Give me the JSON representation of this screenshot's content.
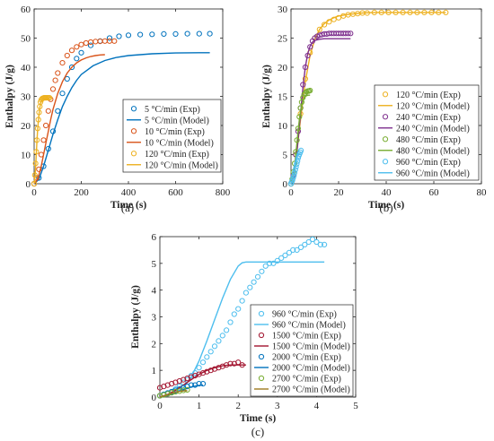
{
  "chart_data": [
    {
      "panel_label": "(a)",
      "type": "line",
      "xlabel": "Time (s)",
      "ylabel": "Enthalpy (J/g)",
      "xlim": [
        0,
        800
      ],
      "ylim": [
        0,
        60
      ],
      "xticks": [
        0,
        200,
        400,
        600,
        800
      ],
      "yticks": [
        0,
        10,
        20,
        30,
        40,
        50,
        60
      ],
      "grid": false,
      "legend_position": "bottom-right",
      "series": [
        {
          "name": "5 °C/min (Exp)",
          "kind": "exp",
          "color": "#0072BD",
          "x": [
            0,
            20,
            40,
            60,
            80,
            100,
            120,
            140,
            160,
            180,
            200,
            240,
            280,
            320,
            360,
            400,
            450,
            500,
            550,
            600,
            650,
            700,
            745
          ],
          "y": [
            0,
            2,
            6,
            12,
            18,
            25,
            31,
            36,
            40,
            43,
            45,
            47.5,
            49,
            50,
            50.6,
            51,
            51.2,
            51.3,
            51.4,
            51.4,
            51.5,
            51.5,
            51.5
          ]
        },
        {
          "name": "5 °C/min (Model)",
          "kind": "model",
          "color": "#0072BD",
          "x": [
            0,
            20,
            40,
            60,
            80,
            100,
            120,
            140,
            160,
            180,
            200,
            250,
            300,
            350,
            400,
            500,
            600,
            700,
            745
          ],
          "y": [
            0,
            1.5,
            6,
            11.5,
            17,
            22,
            26.5,
            30,
            33,
            35.5,
            37.5,
            40.5,
            42.3,
            43.4,
            44,
            44.6,
            44.9,
            45,
            45
          ]
        },
        {
          "name": "10 °C/min (Exp)",
          "kind": "exp",
          "color": "#D95319",
          "x": [
            0,
            10,
            20,
            30,
            40,
            50,
            60,
            70,
            80,
            90,
            100,
            120,
            140,
            160,
            180,
            200,
            220,
            240,
            260,
            280,
            300,
            320,
            340
          ],
          "y": [
            0,
            2,
            5,
            10,
            15,
            20,
            25,
            29,
            32.5,
            35.5,
            38,
            41.5,
            44,
            45.8,
            47,
            47.8,
            48.3,
            48.6,
            48.8,
            48.9,
            49,
            49,
            49
          ]
        },
        {
          "name": "10 °C/min (Model)",
          "kind": "model",
          "color": "#D95319",
          "x": [
            0,
            10,
            20,
            30,
            40,
            50,
            60,
            70,
            80,
            100,
            120,
            140,
            160,
            180,
            200,
            220,
            240,
            260,
            280,
            300
          ],
          "y": [
            0,
            1,
            3,
            6,
            10,
            14,
            18,
            22,
            25.5,
            31,
            35,
            38,
            40,
            41.5,
            42.5,
            43.2,
            43.7,
            44,
            44.2,
            44.3
          ]
        },
        {
          "name": "120 °C/min (Exp)",
          "kind": "exp",
          "color": "#EDB120",
          "x": [
            0,
            3,
            6,
            9,
            12,
            15,
            18,
            21,
            24,
            27,
            30,
            34,
            38,
            42,
            46,
            50,
            55,
            60,
            65
          ],
          "y": [
            0,
            3,
            7,
            11,
            15,
            19,
            22,
            24.5,
            26.5,
            28,
            28.8,
            29.2,
            29.4,
            29.5,
            29.5,
            29.5,
            29.5,
            29.5,
            29.5
          ]
        },
        {
          "name": "120 °C/min (Model)",
          "kind": "model",
          "color": "#EDB120",
          "x": [
            0,
            3,
            6,
            9,
            12,
            15,
            18,
            21,
            24,
            27,
            30,
            35,
            40,
            45,
            50,
            55,
            60,
            65
          ],
          "y": [
            0,
            2,
            5.5,
            10,
            14.5,
            18.5,
            21.5,
            24,
            26,
            27.5,
            28.3,
            29,
            29.3,
            29.4,
            29.4,
            29.4,
            29.4,
            29.4
          ]
        }
      ]
    },
    {
      "panel_label": "(b)",
      "type": "line",
      "xlabel": "Time (s)",
      "ylabel": "Enthalpy (J/g)",
      "xlim": [
        0,
        80
      ],
      "ylim": [
        0,
        30
      ],
      "xticks": [
        0,
        20,
        40,
        60,
        80
      ],
      "yticks": [
        0,
        5,
        10,
        15,
        20,
        25,
        30
      ],
      "grid": false,
      "legend_position": "bottom-right",
      "series": [
        {
          "name": "120 °C/min (Exp)",
          "kind": "exp",
          "color": "#EDB120",
          "x": [
            0,
            2,
            4,
            6,
            8,
            10,
            12,
            14,
            16,
            18,
            20,
            22,
            24,
            26,
            28,
            30,
            32,
            35,
            38,
            41,
            44,
            47,
            50,
            53,
            56,
            59,
            62,
            65
          ],
          "y": [
            0,
            5,
            12,
            18,
            22.5,
            25,
            26.5,
            27.3,
            27.8,
            28.2,
            28.5,
            28.8,
            29,
            29.1,
            29.2,
            29.3,
            29.3,
            29.4,
            29.4,
            29.4,
            29.4,
            29.4,
            29.4,
            29.4,
            29.4,
            29.4,
            29.4,
            29.4
          ]
        },
        {
          "name": "120 °C/min (Model)",
          "kind": "model",
          "color": "#EDB120",
          "x": [
            0,
            2,
            4,
            6,
            8,
            10,
            12,
            14,
            16,
            18,
            20,
            25,
            30,
            35,
            40,
            50,
            60,
            65
          ],
          "y": [
            0,
            4,
            11,
            17.5,
            22,
            24.8,
            26.5,
            27.5,
            28.1,
            28.5,
            28.8,
            29.1,
            29.3,
            29.4,
            29.4,
            29.4,
            29.4,
            29.4
          ]
        },
        {
          "name": "240 °C/min (Exp)",
          "kind": "exp",
          "color": "#7E2F8E",
          "x": [
            0,
            1,
            2,
            3,
            4,
            5,
            6,
            7,
            8,
            9,
            10,
            11,
            12,
            13,
            14,
            15,
            16,
            17,
            18,
            19,
            20,
            21,
            22,
            23,
            24,
            25
          ],
          "y": [
            0,
            1.5,
            5,
            9,
            13,
            17,
            20,
            22,
            23.5,
            24.5,
            25,
            25.3,
            25.5,
            25.6,
            25.7,
            25.7,
            25.8,
            25.8,
            25.8,
            25.8,
            25.8,
            25.8,
            25.8,
            25.8,
            25.8,
            25.8
          ]
        },
        {
          "name": "240 °C/min (Model)",
          "kind": "model",
          "color": "#7E2F8E",
          "x": [
            0,
            1,
            2,
            3,
            4,
            5,
            6,
            7,
            8,
            9,
            10,
            12,
            14,
            16,
            18,
            20,
            22,
            24,
            25
          ],
          "y": [
            0,
            1,
            3.5,
            7.5,
            12,
            16.5,
            20,
            22.3,
            23.6,
            24.3,
            24.6,
            24.8,
            24.9,
            24.9,
            24.9,
            24.9,
            24.9,
            24.9,
            24.9
          ]
        },
        {
          "name": "480 °C/min (Exp)",
          "kind": "exp",
          "color": "#77AC30",
          "x": [
            0,
            0.5,
            1,
            1.5,
            2,
            2.5,
            3,
            3.5,
            4,
            4.5,
            5,
            5.5,
            6,
            6.5,
            7,
            7.5,
            8
          ],
          "y": [
            0,
            0.8,
            2,
            3.5,
            5.5,
            7.5,
            9.5,
            11.5,
            13,
            14,
            14.8,
            15.3,
            15.6,
            15.8,
            15.9,
            15.9,
            16
          ]
        },
        {
          "name": "480 °C/min (Model)",
          "kind": "model",
          "color": "#77AC30",
          "x": [
            0,
            0.5,
            1,
            1.5,
            2,
            2.5,
            3,
            3.5,
            4,
            4.5,
            5,
            5.5,
            6,
            6.5,
            7,
            7.5,
            8
          ],
          "y": [
            0,
            0.5,
            1.5,
            3,
            5,
            7,
            9,
            11,
            12.5,
            13.5,
            14.2,
            14.7,
            15,
            15.1,
            15.2,
            15.2,
            15.2
          ]
        },
        {
          "name": "960 °C/min (Exp)",
          "kind": "exp",
          "color": "#4DBEEE",
          "x": [
            0,
            0.3,
            0.6,
            0.9,
            1.2,
            1.5,
            1.8,
            2.1,
            2.4,
            2.7,
            3,
            3.3,
            3.6,
            3.9,
            4.2
          ],
          "y": [
            0,
            0.3,
            0.6,
            1,
            1.4,
            1.9,
            2.4,
            2.9,
            3.4,
            3.9,
            4.4,
            4.8,
            5.1,
            5.4,
            5.7
          ]
        },
        {
          "name": "960 °C/min (Model)",
          "kind": "model",
          "color": "#4DBEEE",
          "x": [
            0,
            0.3,
            0.6,
            0.9,
            1.2,
            1.5,
            1.8,
            2.1,
            2.4,
            2.7,
            3,
            3.5,
            4,
            4.2
          ],
          "y": [
            0,
            0.2,
            0.6,
            1.1,
            1.7,
            2.4,
            3.1,
            3.8,
            4.4,
            4.8,
            5,
            5.05,
            5.05,
            5.05
          ]
        }
      ]
    },
    {
      "panel_label": "(c)",
      "type": "line",
      "xlabel": "Time (s)",
      "ylabel": "Enthalpy (J/g)",
      "xlim": [
        0,
        5
      ],
      "ylim": [
        0,
        6
      ],
      "xticks": [
        0,
        1,
        2,
        3,
        4,
        5
      ],
      "yticks": [
        0,
        1,
        2,
        3,
        4,
        5,
        6
      ],
      "grid": false,
      "legend_position": "bottom-right",
      "series": [
        {
          "name": "960 °C/min (Exp)",
          "kind": "exp",
          "color": "#4DBEEE",
          "x": [
            0,
            0.1,
            0.2,
            0.3,
            0.4,
            0.5,
            0.6,
            0.7,
            0.8,
            0.9,
            1,
            1.1,
            1.2,
            1.3,
            1.4,
            1.5,
            1.6,
            1.7,
            1.8,
            1.9,
            2,
            2.1,
            2.2,
            2.3,
            2.4,
            2.5,
            2.6,
            2.7,
            2.8,
            2.9,
            3,
            3.1,
            3.2,
            3.3,
            3.4,
            3.5,
            3.6,
            3.7,
            3.8,
            3.9,
            4,
            4.1,
            4.2
          ],
          "y": [
            0.05,
            0.1,
            0.15,
            0.2,
            0.3,
            0.4,
            0.55,
            0.65,
            0.8,
            0.9,
            1.1,
            1.3,
            1.5,
            1.7,
            1.9,
            2.1,
            2.3,
            2.5,
            2.8,
            3.1,
            3.3,
            3.6,
            3.9,
            4.1,
            4.3,
            4.5,
            4.7,
            4.9,
            5.0,
            5.0,
            5.1,
            5.2,
            5.3,
            5.4,
            5.5,
            5.5,
            5.6,
            5.7,
            5.8,
            5.9,
            5.8,
            5.7,
            5.7
          ]
        },
        {
          "name": "960 °C/min (Model)",
          "kind": "model",
          "color": "#4DBEEE",
          "x": [
            0,
            0.2,
            0.4,
            0.6,
            0.8,
            1,
            1.2,
            1.4,
            1.6,
            1.8,
            2,
            2.1,
            2.2,
            2.4,
            3,
            3.5,
            4,
            4.2
          ],
          "y": [
            0,
            0.05,
            0.15,
            0.35,
            0.75,
            1.35,
            2.1,
            2.9,
            3.7,
            4.4,
            4.9,
            5.02,
            5.05,
            5.05,
            5.05,
            5.05,
            5.05,
            5.05
          ]
        },
        {
          "name": "1500 °C/min (Exp)",
          "kind": "exp",
          "color": "#A2142F",
          "x": [
            0,
            0.1,
            0.2,
            0.3,
            0.4,
            0.5,
            0.6,
            0.7,
            0.8,
            0.9,
            1,
            1.1,
            1.2,
            1.3,
            1.4,
            1.5,
            1.6,
            1.7,
            1.8,
            1.9,
            2,
            2.1
          ],
          "y": [
            0.35,
            0.4,
            0.45,
            0.5,
            0.55,
            0.6,
            0.65,
            0.7,
            0.75,
            0.8,
            0.85,
            0.9,
            0.95,
            1.0,
            1.05,
            1.1,
            1.15,
            1.2,
            1.25,
            1.25,
            1.3,
            1.2
          ]
        },
        {
          "name": "1500 °C/min (Model)",
          "kind": "model",
          "color": "#A2142F",
          "x": [
            0,
            0.2,
            0.4,
            0.6,
            0.8,
            1,
            1.2,
            1.4,
            1.6,
            1.8,
            2,
            2.2
          ],
          "y": [
            0,
            0.1,
            0.25,
            0.45,
            0.65,
            0.85,
            1.0,
            1.1,
            1.17,
            1.2,
            1.2,
            1.2
          ]
        },
        {
          "name": "2000 °C/min (Exp)",
          "kind": "exp",
          "color": "#0072BD",
          "x": [
            0,
            0.1,
            0.2,
            0.3,
            0.4,
            0.5,
            0.6,
            0.7,
            0.8,
            0.9,
            1,
            1.1
          ],
          "y": [
            0.05,
            0.1,
            0.15,
            0.2,
            0.25,
            0.3,
            0.35,
            0.4,
            0.45,
            0.45,
            0.5,
            0.5
          ]
        },
        {
          "name": "2000 °C/min (Model)",
          "kind": "model",
          "color": "#0072BD",
          "x": [
            0,
            0.2,
            0.4,
            0.6,
            0.8,
            1,
            1.1
          ],
          "y": [
            0,
            0.06,
            0.16,
            0.28,
            0.38,
            0.44,
            0.45
          ]
        },
        {
          "name": "2700 °C/min (Exp)",
          "kind": "exp",
          "color": "#77AC30",
          "x": [
            0,
            0.1,
            0.2,
            0.3,
            0.4,
            0.5,
            0.6,
            0.7
          ],
          "y": [
            0.05,
            0.08,
            0.12,
            0.16,
            0.2,
            0.22,
            0.25,
            0.27
          ]
        },
        {
          "name": "2700 °C/min (Model)",
          "kind": "model",
          "color": "#9E7B1F",
          "x": [
            0,
            0.1,
            0.2,
            0.3,
            0.4,
            0.5,
            0.6,
            0.7
          ],
          "y": [
            0,
            0.04,
            0.09,
            0.14,
            0.18,
            0.21,
            0.23,
            0.24
          ]
        }
      ]
    }
  ]
}
